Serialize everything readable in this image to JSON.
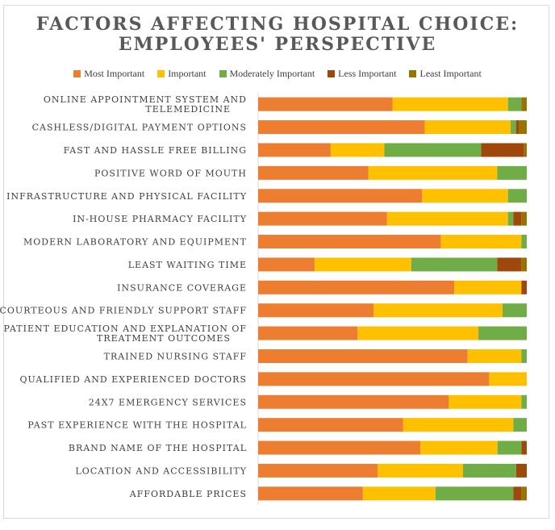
{
  "chart_data": {
    "type": "bar",
    "orientation": "horizontal",
    "stacked": "percent",
    "title": [
      "FACTORS AFFECTING HOSPITAL CHOICE:",
      "EMPLOYEES' PERSPECTIVE"
    ],
    "legend_position": "top",
    "categories": [
      [
        "ONLINE APPOINTMENT SYSTEM AND",
        "TELEMEDICINE"
      ],
      [
        "CASHLESS/DIGITAL PAYMENT OPTIONS"
      ],
      [
        "FAST AND HASSLE FREE BILLING"
      ],
      [
        "POSITIVE WORD OF MOUTH"
      ],
      [
        "INFRASTRUCTURE AND PHYSICAL FACILITY"
      ],
      [
        "IN-HOUSE PHARMACY FACILITY"
      ],
      [
        "MODERN LABORATORY AND EQUIPMENT"
      ],
      [
        "LEAST WAITING TIME"
      ],
      [
        "INSURANCE COVERAGE"
      ],
      [
        "COURTEOUS AND FRIENDLY SUPPORT STAFF"
      ],
      [
        "PATIENT EDUCATION AND EXPLANATION OF",
        "TREATMENT OUTCOMES"
      ],
      [
        "TRAINED NURSING STAFF"
      ],
      [
        "QUALIFIED AND EXPERIENCED DOCTORS"
      ],
      [
        "24X7 EMERGENCY SERVICES"
      ],
      [
        "PAST EXPERIENCE WITH THE HOSPITAL"
      ],
      [
        "BRAND NAME OF THE HOSPITAL"
      ],
      [
        "LOCATION AND ACCESSIBILITY"
      ],
      [
        "AFFORDABLE PRICES"
      ]
    ],
    "series": [
      {
        "name": "Most Important",
        "color": "#ED7D31",
        "values": [
          50,
          62,
          27,
          41,
          61,
          48,
          68,
          21,
          73,
          43,
          37,
          78,
          86,
          71,
          54,
          61,
          45,
          39
        ]
      },
      {
        "name": "Important",
        "color": "#FFC000",
        "values": [
          43,
          32,
          20,
          48,
          32,
          45,
          30,
          36,
          25,
          48,
          45,
          20,
          14,
          27,
          41,
          29,
          32,
          27
        ]
      },
      {
        "name": "Moderately Important",
        "color": "#70AD47",
        "values": [
          5,
          2,
          36,
          11,
          7,
          2,
          2,
          32,
          0,
          9,
          18,
          2,
          0,
          2,
          5,
          9,
          20,
          29
        ]
      },
      {
        "name": "Less Important",
        "color": "#9E480E",
        "values": [
          0,
          1,
          16,
          0,
          0,
          3,
          0,
          9,
          2,
          0,
          0,
          0,
          0,
          0,
          0,
          2,
          4,
          3
        ]
      },
      {
        "name": "Least Important",
        "color": "#997300",
        "values": [
          2,
          3,
          1,
          0,
          0,
          2,
          0,
          2,
          0,
          0,
          0,
          0,
          0,
          0,
          0,
          0,
          0,
          2
        ]
      }
    ],
    "xlim": [
      0,
      100
    ],
    "grid": false
  }
}
